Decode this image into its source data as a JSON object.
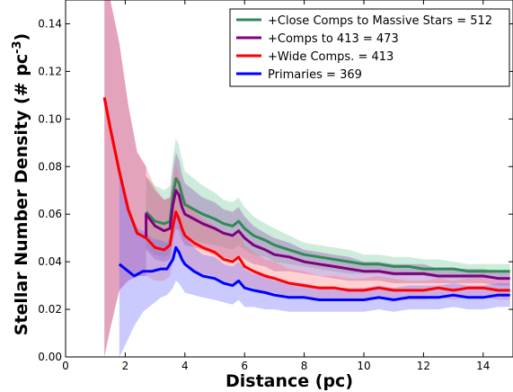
{
  "chart_data": {
    "type": "line",
    "xlabel": "Distance (pc)",
    "ylabel_main": "Stellar Number Density (# pc",
    "ylabel_sup": "-3",
    "ylabel_close": ")",
    "xlim": [
      0,
      15
    ],
    "ylim": [
      0.0,
      0.15
    ],
    "xticks": [
      0,
      2,
      4,
      6,
      8,
      10,
      12,
      14
    ],
    "xtick_labels": [
      "0",
      "2",
      "4",
      "6",
      "8",
      "10",
      "12",
      "14"
    ],
    "yticks": [
      0.0,
      0.02,
      0.04,
      0.06,
      0.08,
      0.1,
      0.12,
      0.14
    ],
    "ytick_labels": [
      "0.00",
      "0.02",
      "0.04",
      "0.06",
      "0.08",
      "0.10",
      "0.12",
      "0.14"
    ],
    "grid": false,
    "legend_position": "top-right",
    "series": [
      {
        "name": "+Close Comps to Massive Stars = 512",
        "color": "#2e8b57",
        "band_color": "#3cb371",
        "x": [
          2.7,
          3.0,
          3.3,
          3.5,
          3.6,
          3.7,
          3.8,
          3.9,
          4.0,
          4.3,
          4.6,
          5.0,
          5.3,
          5.6,
          5.8,
          6.0,
          6.3,
          6.7,
          7.0,
          7.5,
          8.0,
          8.5,
          9.0,
          9.5,
          10.0,
          10.5,
          11.0,
          11.5,
          12.0,
          12.5,
          13.0,
          13.5,
          14.0,
          14.5,
          14.9
        ],
        "y": [
          0.061,
          0.057,
          0.056,
          0.057,
          0.068,
          0.075,
          0.073,
          0.068,
          0.064,
          0.062,
          0.06,
          0.058,
          0.056,
          0.055,
          0.057,
          0.054,
          0.051,
          0.049,
          0.047,
          0.045,
          0.043,
          0.042,
          0.041,
          0.04,
          0.039,
          0.039,
          0.038,
          0.038,
          0.037,
          0.037,
          0.037,
          0.036,
          0.036,
          0.036,
          0.036
        ],
        "lower": [
          0.046,
          0.043,
          0.042,
          0.043,
          0.052,
          0.058,
          0.057,
          0.053,
          0.05,
          0.049,
          0.048,
          0.047,
          0.046,
          0.045,
          0.047,
          0.045,
          0.043,
          0.042,
          0.04,
          0.039,
          0.038,
          0.037,
          0.036,
          0.035,
          0.035,
          0.035,
          0.034,
          0.034,
          0.034,
          0.033,
          0.033,
          0.033,
          0.033,
          0.033,
          0.033
        ],
        "upper": [
          0.076,
          0.072,
          0.07,
          0.072,
          0.084,
          0.092,
          0.089,
          0.083,
          0.078,
          0.075,
          0.072,
          0.069,
          0.066,
          0.065,
          0.067,
          0.063,
          0.059,
          0.056,
          0.054,
          0.051,
          0.048,
          0.047,
          0.046,
          0.045,
          0.043,
          0.043,
          0.042,
          0.042,
          0.041,
          0.041,
          0.04,
          0.039,
          0.039,
          0.039,
          0.039
        ]
      },
      {
        "name": "+Comps to 413 = 473",
        "color": "#800080",
        "band_color": "#8e44ad",
        "x": [
          1.3,
          1.5,
          1.8,
          2.1,
          2.4,
          2.7,
          2.7,
          3.0,
          3.3,
          3.5,
          3.6,
          3.7,
          3.8,
          3.9,
          4.0,
          4.3,
          4.6,
          5.0,
          5.3,
          5.6,
          5.8,
          6.0,
          6.3,
          6.7,
          7.0,
          7.5,
          8.0,
          8.5,
          9.0,
          9.5,
          10.0,
          10.5,
          11.0,
          11.5,
          12.0,
          12.5,
          13.0,
          13.5,
          14.0,
          14.5,
          14.9
        ],
        "y": [
          0.109,
          0.096,
          0.078,
          0.062,
          0.052,
          0.05,
          0.06,
          0.055,
          0.053,
          0.054,
          0.064,
          0.07,
          0.068,
          0.063,
          0.06,
          0.058,
          0.056,
          0.054,
          0.052,
          0.051,
          0.053,
          0.05,
          0.047,
          0.045,
          0.043,
          0.042,
          0.04,
          0.039,
          0.038,
          0.037,
          0.036,
          0.036,
          0.035,
          0.035,
          0.035,
          0.034,
          0.034,
          0.034,
          0.034,
          0.033,
          0.033
        ],
        "lower": [
          0.0,
          0.012,
          0.028,
          0.032,
          0.034,
          0.034,
          0.045,
          0.041,
          0.04,
          0.041,
          0.049,
          0.054,
          0.053,
          0.049,
          0.047,
          0.046,
          0.045,
          0.043,
          0.042,
          0.041,
          0.043,
          0.041,
          0.039,
          0.038,
          0.036,
          0.036,
          0.035,
          0.034,
          0.033,
          0.032,
          0.032,
          0.032,
          0.031,
          0.031,
          0.031,
          0.031,
          0.031,
          0.031,
          0.031,
          0.03,
          0.03
        ],
        "upper": [
          0.15,
          0.15,
          0.132,
          0.106,
          0.086,
          0.08,
          0.076,
          0.07,
          0.066,
          0.067,
          0.079,
          0.086,
          0.083,
          0.077,
          0.073,
          0.07,
          0.067,
          0.065,
          0.062,
          0.061,
          0.063,
          0.059,
          0.055,
          0.052,
          0.05,
          0.048,
          0.045,
          0.044,
          0.043,
          0.042,
          0.04,
          0.04,
          0.039,
          0.039,
          0.039,
          0.037,
          0.037,
          0.037,
          0.037,
          0.036,
          0.036
        ]
      },
      {
        "name": "+Wide Comps. = 413",
        "color": "#ff0000",
        "band_color": "#ff6666",
        "x": [
          1.3,
          1.5,
          1.8,
          2.1,
          2.4,
          2.7,
          3.0,
          3.3,
          3.5,
          3.6,
          3.7,
          3.8,
          3.9,
          4.0,
          4.3,
          4.6,
          5.0,
          5.3,
          5.6,
          5.8,
          6.0,
          6.3,
          6.7,
          7.0,
          7.5,
          8.0,
          8.5,
          9.0,
          9.5,
          10.0,
          10.5,
          11.0,
          11.5,
          12.0,
          12.5,
          13.0,
          13.5,
          14.0,
          14.5,
          14.9
        ],
        "y": [
          0.109,
          0.096,
          0.078,
          0.062,
          0.052,
          0.05,
          0.046,
          0.045,
          0.047,
          0.055,
          0.061,
          0.058,
          0.054,
          0.051,
          0.048,
          0.046,
          0.044,
          0.041,
          0.04,
          0.042,
          0.038,
          0.036,
          0.034,
          0.033,
          0.031,
          0.03,
          0.029,
          0.029,
          0.028,
          0.028,
          0.029,
          0.028,
          0.028,
          0.028,
          0.029,
          0.028,
          0.029,
          0.029,
          0.028,
          0.028
        ],
        "lower": [
          0.0,
          0.012,
          0.028,
          0.032,
          0.034,
          0.034,
          0.032,
          0.032,
          0.034,
          0.04,
          0.045,
          0.043,
          0.04,
          0.038,
          0.036,
          0.035,
          0.034,
          0.032,
          0.031,
          0.033,
          0.03,
          0.029,
          0.027,
          0.027,
          0.025,
          0.025,
          0.024,
          0.024,
          0.024,
          0.024,
          0.025,
          0.024,
          0.024,
          0.024,
          0.025,
          0.024,
          0.025,
          0.025,
          0.024,
          0.024
        ],
        "upper": [
          0.15,
          0.15,
          0.132,
          0.106,
          0.086,
          0.08,
          0.071,
          0.066,
          0.067,
          0.075,
          0.081,
          0.077,
          0.072,
          0.067,
          0.062,
          0.058,
          0.055,
          0.051,
          0.05,
          0.052,
          0.047,
          0.044,
          0.041,
          0.04,
          0.037,
          0.036,
          0.034,
          0.034,
          0.033,
          0.033,
          0.034,
          0.033,
          0.032,
          0.032,
          0.033,
          0.032,
          0.033,
          0.033,
          0.032,
          0.032
        ]
      },
      {
        "name": "Primaries = 369",
        "color": "#0000ff",
        "band_color": "#6666ff",
        "x": [
          1.8,
          2.0,
          2.3,
          2.6,
          2.9,
          3.2,
          3.4,
          3.6,
          3.7,
          3.8,
          3.9,
          4.0,
          4.3,
          4.6,
          5.0,
          5.3,
          5.6,
          5.8,
          6.0,
          6.3,
          6.7,
          7.0,
          7.5,
          8.0,
          8.5,
          9.0,
          9.5,
          10.0,
          10.5,
          11.0,
          11.5,
          12.0,
          12.5,
          13.0,
          13.5,
          14.0,
          14.5,
          14.9
        ],
        "y": [
          0.039,
          0.037,
          0.034,
          0.036,
          0.036,
          0.037,
          0.037,
          0.041,
          0.046,
          0.044,
          0.041,
          0.039,
          0.036,
          0.034,
          0.033,
          0.031,
          0.03,
          0.032,
          0.029,
          0.028,
          0.027,
          0.026,
          0.025,
          0.025,
          0.024,
          0.024,
          0.024,
          0.024,
          0.025,
          0.024,
          0.025,
          0.025,
          0.025,
          0.026,
          0.025,
          0.025,
          0.026,
          0.026
        ],
        "lower": [
          0.0,
          0.005,
          0.013,
          0.019,
          0.022,
          0.025,
          0.026,
          0.029,
          0.032,
          0.031,
          0.029,
          0.027,
          0.026,
          0.025,
          0.024,
          0.023,
          0.022,
          0.024,
          0.021,
          0.021,
          0.02,
          0.02,
          0.019,
          0.019,
          0.019,
          0.019,
          0.019,
          0.019,
          0.02,
          0.019,
          0.02,
          0.02,
          0.02,
          0.021,
          0.02,
          0.02,
          0.021,
          0.021
        ],
        "upper": [
          0.078,
          0.069,
          0.055,
          0.053,
          0.05,
          0.049,
          0.048,
          0.053,
          0.06,
          0.057,
          0.053,
          0.051,
          0.046,
          0.043,
          0.042,
          0.039,
          0.038,
          0.04,
          0.037,
          0.035,
          0.034,
          0.032,
          0.031,
          0.031,
          0.029,
          0.029,
          0.029,
          0.029,
          0.03,
          0.029,
          0.03,
          0.03,
          0.03,
          0.031,
          0.03,
          0.03,
          0.031,
          0.031
        ]
      }
    ]
  }
}
